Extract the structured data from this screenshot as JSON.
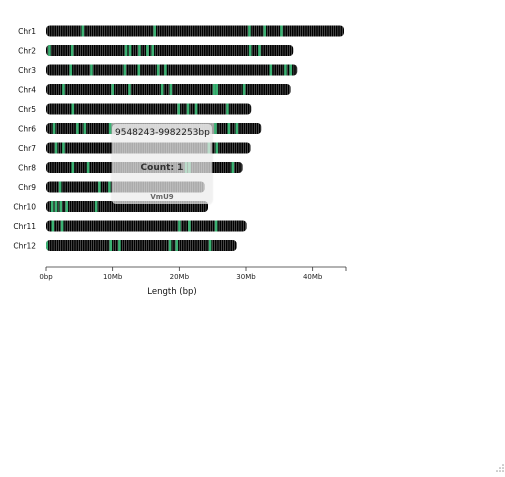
{
  "chart_data": {
    "type": "karyotype",
    "xlabel": "Length (bp)",
    "ticks": [
      "0bp",
      "10Mb",
      "20Mb",
      "30Mb",
      "40Mb"
    ],
    "tick_values": [
      0,
      10000000,
      20000000,
      30000000,
      40000000
    ],
    "xlim": [
      0,
      45000000
    ],
    "colors": {
      "background": "#000000",
      "gene_line": "#9a9a9a",
      "feature": "#3bb273",
      "highlight": "#bdbdbd"
    },
    "chromosomes": [
      {
        "name": "Chr1",
        "length": 44700000,
        "features": [
          5500000,
          16300000,
          30500000,
          32800000,
          35300000
        ]
      },
      {
        "name": "Chr2",
        "length": 37100000,
        "features": [
          500000,
          3900000,
          12000000,
          12600000,
          14000000,
          15200000,
          16000000,
          30600000,
          32000000
        ]
      },
      {
        "name": "Chr3",
        "length": 37700000,
        "features": [
          3700000,
          6800000,
          11800000,
          13900000,
          16800000,
          17900000,
          33700000,
          35900000,
          36700000
        ]
      },
      {
        "name": "Chr4",
        "length": 36700000,
        "features": [
          2600000,
          10000000,
          12500000,
          17400000,
          18700000,
          25200000,
          25600000,
          29700000
        ]
      },
      {
        "name": "Chr5",
        "length": 30800000,
        "features": [
          4000000,
          19900000,
          21300000,
          22500000,
          27200000
        ]
      },
      {
        "name": "Chr6",
        "length": 32300000,
        "features": [
          1200000,
          4700000,
          5800000,
          9600000,
          25400000,
          27400000,
          28600000
        ]
      },
      {
        "name": "Chr7",
        "length": 30700000,
        "features": [
          1500000,
          2600000,
          24400000,
          25600000
        ]
      },
      {
        "name": "Chr8",
        "length": 29500000,
        "features": [
          4000000,
          6300000,
          21000000,
          21500000,
          28000000
        ]
      },
      {
        "name": "Chr9",
        "length": 23800000,
        "features": [
          2100000,
          8000000,
          9500000
        ]
      },
      {
        "name": "Chr10",
        "length": 24300000,
        "features": [
          900000,
          1500000,
          2200000,
          3100000,
          7500000
        ]
      },
      {
        "name": "Chr11",
        "length": 30100000,
        "features": [
          1000000,
          2400000,
          20000000,
          21500000,
          25500000
        ]
      },
      {
        "name": "Chr12",
        "length": 28600000,
        "features": [
          100000,
          9700000,
          11000000,
          18600000,
          19600000,
          24600000
        ]
      }
    ],
    "highlight": {
      "chromosome": "Chr6",
      "start": 9548243,
      "end": 25330000
    }
  },
  "tooltip": {
    "range": "9548243-9982253bp",
    "count": "Count: 1",
    "name": "VmU9"
  }
}
